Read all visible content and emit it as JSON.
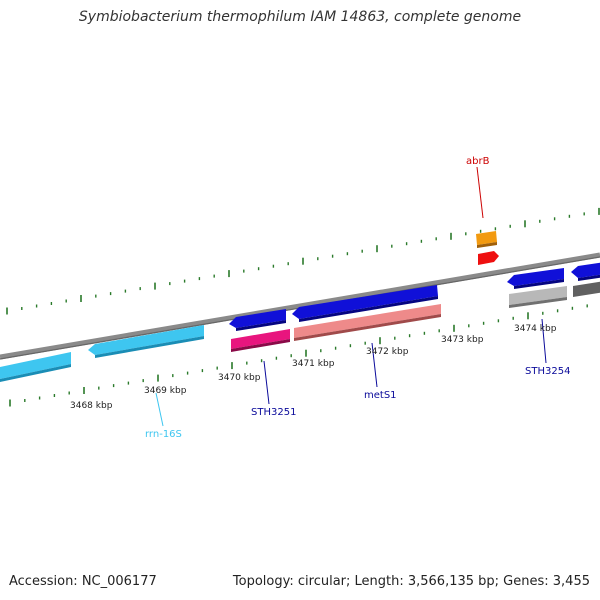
{
  "title": "Symbiobacterium thermophilum IAM 14863, complete genome",
  "footer": {
    "accession": "Accession: NC_006177",
    "topology": "Topology: circular; Length: 3,566,135 bp; Genes: 3,455"
  },
  "colors": {
    "backbone": "#8a8a8a",
    "tick": "#2a7a2a",
    "rrna": "#3ec6f0",
    "cds_blue": "#1010d8",
    "cds_magenta": "#e8157e",
    "cds_pink": "#ee8a8a",
    "cds_orange": "#f29a10",
    "cds_red": "#ee1010",
    "cds_gray": "#b8b8b8",
    "cds_darkgray": "#606060"
  },
  "scale_labels": [
    "3468 kbp",
    "3469 kbp",
    "3470 kbp",
    "3471 kbp",
    "3472 kbp",
    "3473 kbp",
    "3474 kbp"
  ],
  "gene_labels": {
    "abrB": "abrB",
    "rrn16S": "rrn-16S",
    "STH3251": "STH3251",
    "metS1": "metS1",
    "STH3254": "STH3254"
  }
}
